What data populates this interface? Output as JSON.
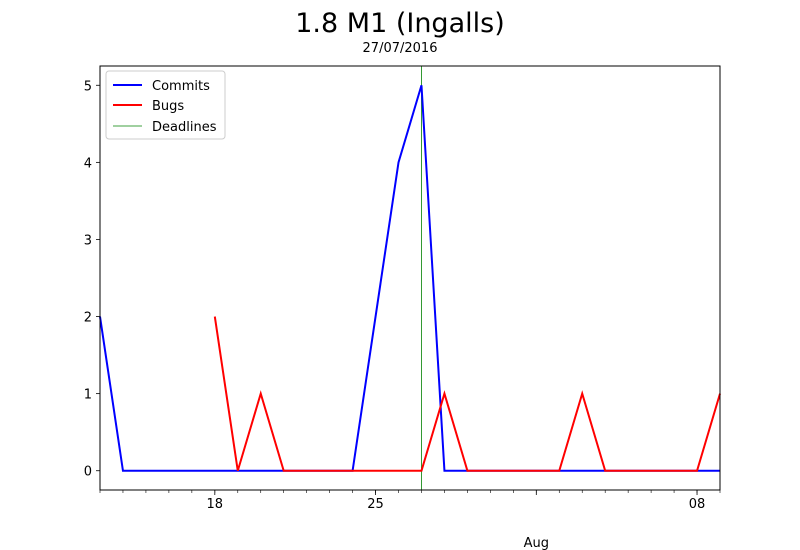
{
  "chart_data": {
    "type": "line",
    "title": "1.8 M1 (Ingalls)",
    "subtitle": "27/07/2016",
    "xlabel": "",
    "ylabel": "",
    "x_unit": "date",
    "xlim": [
      "2016-07-13",
      "2016-08-09"
    ],
    "ylim": [
      -0.25,
      5.25
    ],
    "y_ticks": [
      0,
      1,
      2,
      3,
      4,
      5
    ],
    "x_ticks": [
      {
        "date": "2016-07-18",
        "label": "18"
      },
      {
        "date": "2016-07-25",
        "label": "25"
      },
      {
        "date": "2016-08-08",
        "label": "08"
      }
    ],
    "x_secondary_label": {
      "date": "2016-08-01",
      "label": "Aug"
    },
    "legend_position": "top-left",
    "series": [
      {
        "name": "Commits",
        "color": "#0000ff",
        "points": [
          [
            "2016-07-13",
            2
          ],
          [
            "2016-07-14",
            0
          ],
          [
            "2016-07-15",
            0
          ],
          [
            "2016-07-16",
            0
          ],
          [
            "2016-07-17",
            0
          ],
          [
            "2016-07-18",
            0
          ],
          [
            "2016-07-19",
            0
          ],
          [
            "2016-07-20",
            0
          ],
          [
            "2016-07-21",
            0
          ],
          [
            "2016-07-22",
            0
          ],
          [
            "2016-07-23",
            0
          ],
          [
            "2016-07-24",
            0
          ],
          [
            "2016-07-25",
            2
          ],
          [
            "2016-07-26",
            4
          ],
          [
            "2016-07-27",
            5
          ],
          [
            "2016-07-28",
            0
          ],
          [
            "2016-07-29",
            0
          ],
          [
            "2016-07-30",
            0
          ],
          [
            "2016-07-31",
            0
          ],
          [
            "2016-08-01",
            0
          ],
          [
            "2016-08-02",
            0
          ],
          [
            "2016-08-03",
            0
          ],
          [
            "2016-08-04",
            0
          ],
          [
            "2016-08-05",
            0
          ],
          [
            "2016-08-06",
            0
          ],
          [
            "2016-08-07",
            0
          ],
          [
            "2016-08-08",
            0
          ],
          [
            "2016-08-09",
            0
          ]
        ]
      },
      {
        "name": "Bugs",
        "color": "#ff0000",
        "points": [
          [
            "2016-07-18",
            2
          ],
          [
            "2016-07-19",
            0
          ],
          [
            "2016-07-20",
            1
          ],
          [
            "2016-07-21",
            0
          ],
          [
            "2016-07-22",
            0
          ],
          [
            "2016-07-23",
            0
          ],
          [
            "2016-07-24",
            0
          ],
          [
            "2016-07-25",
            0
          ],
          [
            "2016-07-26",
            0
          ],
          [
            "2016-07-27",
            0
          ],
          [
            "2016-07-28",
            1
          ],
          [
            "2016-07-29",
            0
          ],
          [
            "2016-07-30",
            0
          ],
          [
            "2016-07-31",
            0
          ],
          [
            "2016-08-01",
            0
          ],
          [
            "2016-08-02",
            0
          ],
          [
            "2016-08-03",
            1
          ],
          [
            "2016-08-04",
            0
          ],
          [
            "2016-08-05",
            0
          ],
          [
            "2016-08-06",
            0
          ],
          [
            "2016-08-07",
            0
          ],
          [
            "2016-08-08",
            0
          ],
          [
            "2016-08-09",
            1
          ]
        ]
      }
    ],
    "deadlines": {
      "name": "Deadlines",
      "color": "#008000",
      "dates": [
        "2016-07-27"
      ]
    }
  }
}
